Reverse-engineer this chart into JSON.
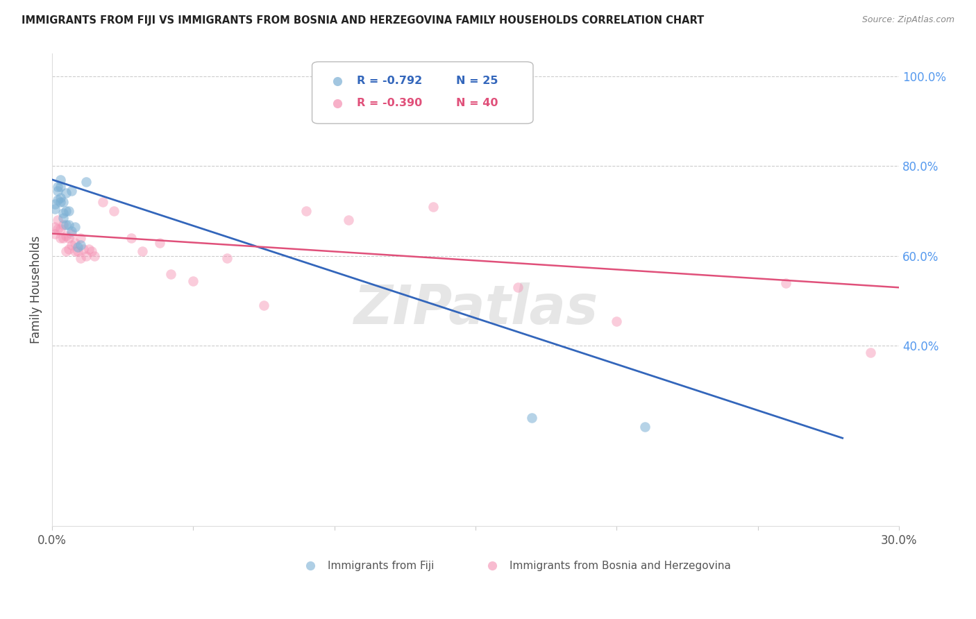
{
  "title": "IMMIGRANTS FROM FIJI VS IMMIGRANTS FROM BOSNIA AND HERZEGOVINA FAMILY HOUSEHOLDS CORRELATION CHART",
  "source": "Source: ZipAtlas.com",
  "ylabel": "Family Households",
  "watermark": "ZIPatlas",
  "legend_blue_r": "-0.792",
  "legend_blue_n": "25",
  "legend_pink_r": "-0.390",
  "legend_pink_n": "40",
  "legend_label_blue": "Immigrants from Fiji",
  "legend_label_pink": "Immigrants from Bosnia and Herzegovina",
  "blue_color": "#7BAFD4",
  "pink_color": "#F48FB1",
  "blue_line_color": "#3366BB",
  "pink_line_color": "#E0507A",
  "fiji_x": [
    0.001,
    0.001,
    0.002,
    0.002,
    0.002,
    0.003,
    0.003,
    0.003,
    0.003,
    0.004,
    0.004,
    0.004,
    0.005,
    0.005,
    0.005,
    0.006,
    0.006,
    0.007,
    0.007,
    0.008,
    0.009,
    0.01,
    0.012,
    0.17,
    0.21
  ],
  "fiji_y": [
    0.705,
    0.715,
    0.725,
    0.745,
    0.755,
    0.72,
    0.73,
    0.755,
    0.77,
    0.685,
    0.695,
    0.72,
    0.67,
    0.7,
    0.74,
    0.67,
    0.7,
    0.655,
    0.745,
    0.665,
    0.62,
    0.625,
    0.765,
    0.24,
    0.22
  ],
  "bosnia_x": [
    0.001,
    0.001,
    0.002,
    0.002,
    0.003,
    0.003,
    0.004,
    0.004,
    0.005,
    0.005,
    0.006,
    0.006,
    0.007,
    0.007,
    0.008,
    0.008,
    0.009,
    0.01,
    0.01,
    0.011,
    0.012,
    0.013,
    0.014,
    0.015,
    0.018,
    0.022,
    0.028,
    0.032,
    0.038,
    0.042,
    0.05,
    0.062,
    0.075,
    0.09,
    0.105,
    0.135,
    0.165,
    0.2,
    0.26,
    0.29
  ],
  "bosnia_y": [
    0.65,
    0.665,
    0.66,
    0.68,
    0.64,
    0.66,
    0.64,
    0.67,
    0.61,
    0.645,
    0.615,
    0.64,
    0.625,
    0.65,
    0.61,
    0.63,
    0.61,
    0.595,
    0.64,
    0.615,
    0.6,
    0.615,
    0.61,
    0.6,
    0.72,
    0.7,
    0.64,
    0.61,
    0.63,
    0.56,
    0.545,
    0.595,
    0.49,
    0.7,
    0.68,
    0.71,
    0.53,
    0.455,
    0.54,
    0.385
  ],
  "xlim": [
    0.0,
    0.3
  ],
  "ylim": [
    0.0,
    1.05
  ],
  "blue_line_x": [
    0.0,
    0.28
  ],
  "blue_line_y": [
    0.77,
    0.195
  ],
  "pink_line_x": [
    0.0,
    0.3
  ],
  "pink_line_y": [
    0.65,
    0.53
  ],
  "figsize": [
    14.06,
    8.92
  ],
  "dpi": 100
}
